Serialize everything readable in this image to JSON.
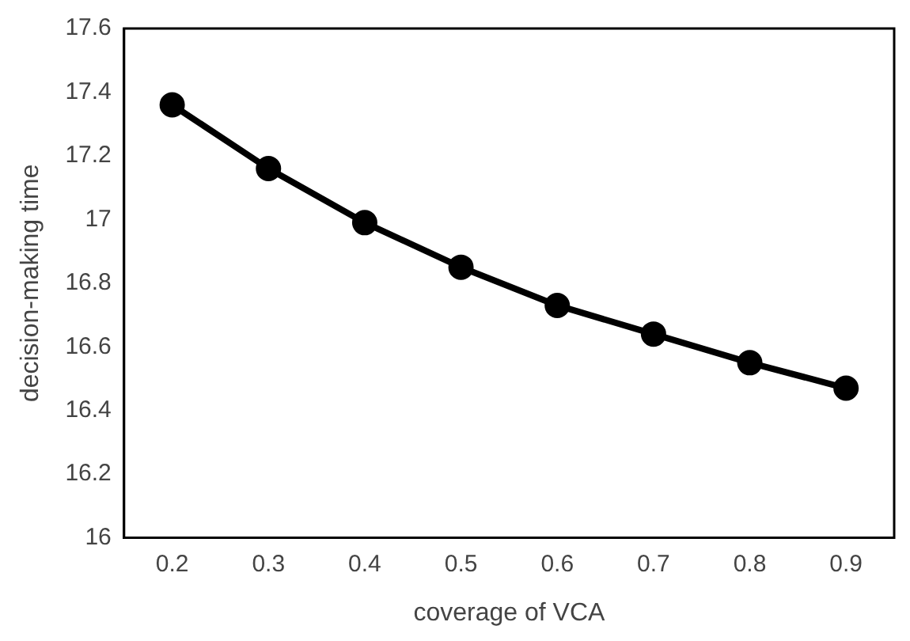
{
  "chart_data": {
    "type": "line",
    "xlabel": "coverage of VCA",
    "ylabel": "decision-making time",
    "categories": [
      "0.2",
      "0.3",
      "0.4",
      "0.5",
      "0.6",
      "0.7",
      "0.8",
      "0.9"
    ],
    "series": [
      {
        "color": "#000000",
        "values": [
          17.36,
          17.16,
          16.99,
          16.85,
          16.73,
          16.64,
          16.55,
          16.47
        ]
      }
    ],
    "ylim": [
      16,
      17.6
    ],
    "yticks": [
      {
        "value": 16,
        "label": "16"
      },
      16.2,
      16.4,
      16.6,
      16.8,
      {
        "value": 17,
        "label": "17"
      },
      17.2,
      17.4,
      17.6
    ],
    "grid": false,
    "legend": false,
    "marker": "circle",
    "line_style": "solid"
  }
}
